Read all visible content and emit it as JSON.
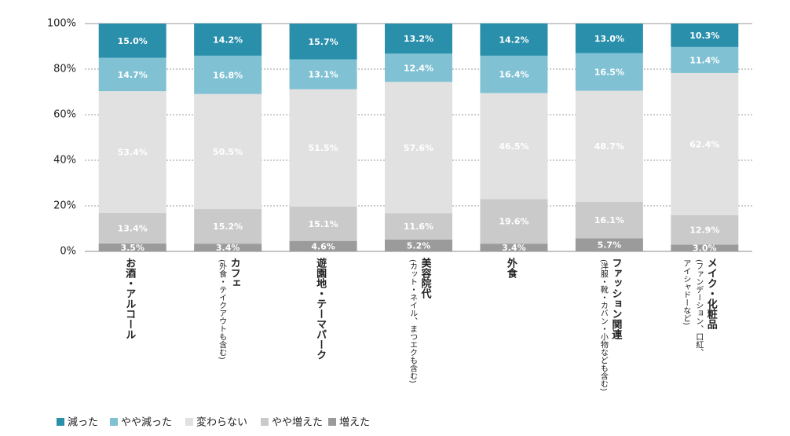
{
  "chart_data": {
    "type": "stacked-bar",
    "categories": [
      "お酒・アルコール",
      "カフェ",
      "遊園地・テーマパーク",
      "美容院代",
      "外食",
      "ファッション関連",
      "メイク・化粧品"
    ],
    "category_notes": [
      [],
      [
        "(外食・テイクアウトも含む)"
      ],
      [],
      [
        "(カット・ネイル、まつエクも含む)"
      ],
      [],
      [
        "(洋服・靴・カバン・小物なども含む)"
      ],
      [
        "(ファンデーション、口紅、",
        "アイシャドーなど)"
      ]
    ],
    "series": [
      {
        "name": "増えた",
        "color": "#9b9b9b",
        "values": [
          3.5,
          3.4,
          4.6,
          5.2,
          3.4,
          5.7,
          3.0
        ],
        "value_labels": [
          "3.5%",
          "3.4%",
          "4.6%",
          "5.2%",
          "3.4%",
          "5.7%",
          "3.0%"
        ]
      },
      {
        "name": "やや増えた",
        "color": "#cacaca",
        "values": [
          13.4,
          15.2,
          15.1,
          11.6,
          19.6,
          16.1,
          12.9
        ],
        "value_labels": [
          "13.4%",
          "15.2%",
          "15.1%",
          "11.6%",
          "19.6%",
          "16.1%",
          "12.9%"
        ]
      },
      {
        "name": "変わらない",
        "color": "#e1e1e1",
        "values": [
          53.4,
          50.5,
          51.5,
          57.6,
          46.5,
          48.7,
          62.4
        ],
        "value_labels": [
          "53.4%",
          "50.5%",
          "51.5%",
          "57.6%",
          "46.5%",
          "48.7%",
          "62.4%"
        ]
      },
      {
        "name": "やや減った",
        "color": "#80c2d4",
        "values": [
          14.7,
          16.8,
          13.1,
          12.4,
          16.4,
          16.5,
          11.4
        ],
        "value_labels": [
          "14.7%",
          "16.8%",
          "13.1%",
          "12.4%",
          "16.4%",
          "16.5%",
          "11.4%"
        ]
      },
      {
        "name": "減った",
        "color": "#2a8fab",
        "values": [
          15.0,
          14.2,
          15.7,
          13.2,
          14.2,
          13.0,
          10.3
        ],
        "value_labels": [
          "15.0%",
          "14.2%",
          "15.7%",
          "13.2%",
          "14.2%",
          "13.0%",
          "10.3%"
        ]
      }
    ],
    "ylim": [
      0,
      100
    ],
    "yticks": [
      {
        "value": 0,
        "label": "0%"
      },
      {
        "value": 20,
        "label": "20%"
      },
      {
        "value": 40,
        "label": "40%"
      },
      {
        "value": 60,
        "label": "60%"
      },
      {
        "value": 80,
        "label": "80%"
      },
      {
        "value": 100,
        "label": "100%"
      }
    ],
    "grid": true
  }
}
